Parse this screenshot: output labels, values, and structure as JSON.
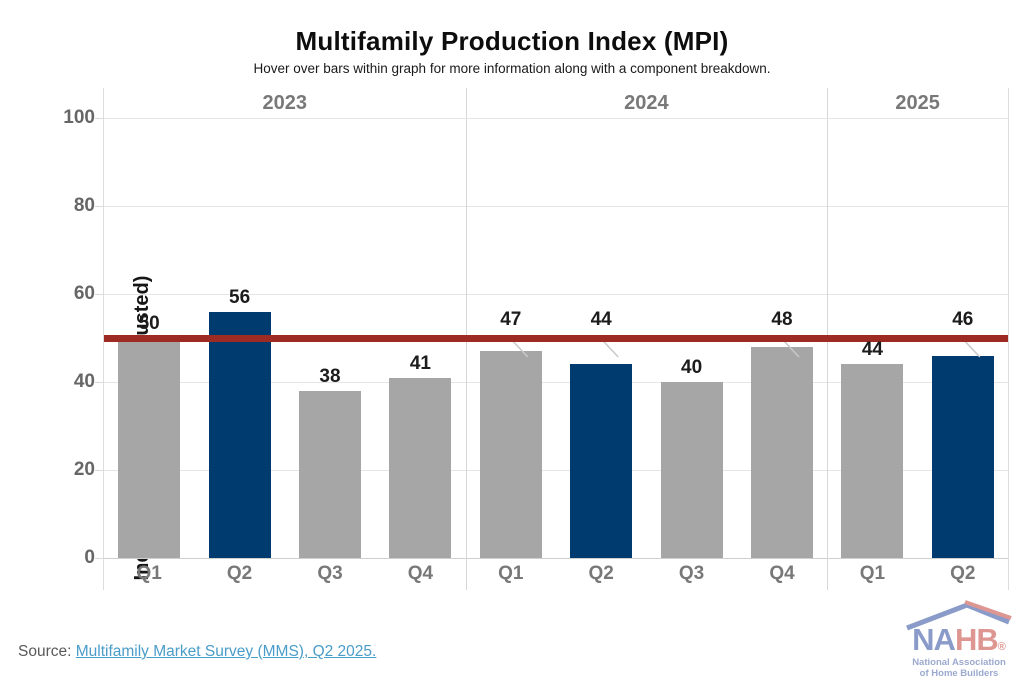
{
  "chart_data": {
    "type": "bar",
    "title": "Multifamily Production Index (MPI)",
    "subtitle": "Hover over bars within graph for more information along with a component breakdown.",
    "ylabel": "Index (Not Seasonally Adjusted)",
    "ylim": [
      0,
      100
    ],
    "yticks": [
      0,
      20,
      40,
      60,
      80,
      100
    ],
    "grid": true,
    "legend": "none",
    "reference_line": {
      "value": 50,
      "color": "#9E2B23"
    },
    "bar_colors": {
      "default": "#A6A6A6",
      "highlight": "#003B70"
    },
    "groups": [
      {
        "year": "2023",
        "quarters": [
          "Q1",
          "Q2",
          "Q3",
          "Q4"
        ],
        "values": [
          50,
          56,
          38,
          41
        ],
        "highlight": [
          "Q2"
        ],
        "callouts": []
      },
      {
        "year": "2024",
        "quarters": [
          "Q1",
          "Q2",
          "Q3",
          "Q4"
        ],
        "values": [
          47,
          44,
          40,
          48
        ],
        "highlight": [
          "Q2"
        ],
        "callouts": [
          "Q1",
          "Q2",
          "Q4"
        ]
      },
      {
        "year": "2025",
        "quarters": [
          "Q1",
          "Q2"
        ],
        "values": [
          44,
          46
        ],
        "highlight": [
          "Q2"
        ],
        "callouts": [
          "Q2"
        ]
      }
    ]
  },
  "footer": {
    "source_label": "Source:",
    "source_link": "Multifamily Market Survey (MMS), Q2 2025."
  },
  "logo": {
    "brand_left": "NA",
    "brand_right": "HB",
    "registered_mark": "®",
    "tagline_line1": "National Association",
    "tagline_line2": "of Home Builders"
  }
}
